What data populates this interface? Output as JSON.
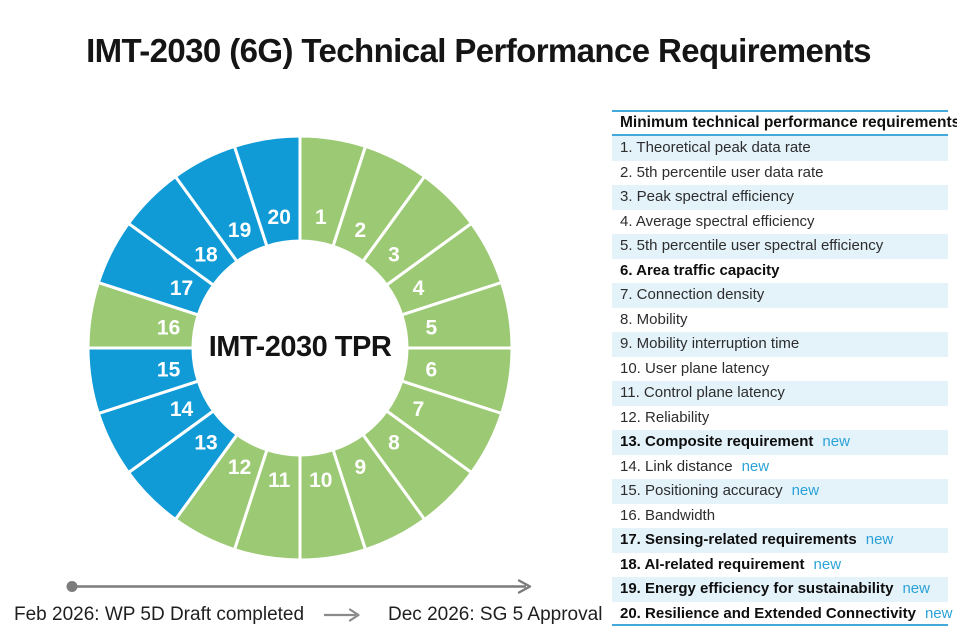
{
  "page": {
    "title": "IMT-2030 (6G) Technical Performance Requirements"
  },
  "chart_data": {
    "type": "donut",
    "title": "IMT-2030 (6G) Technical Performance Requirements",
    "center_label": "IMT-2030 TPR",
    "segment_count": 20,
    "direction": "clockwise",
    "start_position": "top",
    "equal_segments": true,
    "status_colors": {
      "existing": "#9cc973",
      "new": "#109bd7"
    },
    "segments": [
      {
        "n": "1",
        "status": "existing"
      },
      {
        "n": "2",
        "status": "existing"
      },
      {
        "n": "3",
        "status": "existing"
      },
      {
        "n": "4",
        "status": "existing"
      },
      {
        "n": "5",
        "status": "existing"
      },
      {
        "n": "6",
        "status": "existing"
      },
      {
        "n": "7",
        "status": "existing"
      },
      {
        "n": "8",
        "status": "existing"
      },
      {
        "n": "9",
        "status": "existing"
      },
      {
        "n": "10",
        "status": "existing"
      },
      {
        "n": "11",
        "status": "existing"
      },
      {
        "n": "12",
        "status": "existing"
      },
      {
        "n": "13",
        "status": "new"
      },
      {
        "n": "14",
        "status": "new"
      },
      {
        "n": "15",
        "status": "new"
      },
      {
        "n": "16",
        "status": "existing"
      },
      {
        "n": "17",
        "status": "new"
      },
      {
        "n": "18",
        "status": "new"
      },
      {
        "n": "19",
        "status": "new"
      },
      {
        "n": "20",
        "status": "new"
      }
    ]
  },
  "table": {
    "header": "Minimum technical performance requirements",
    "new_tag_label": "new",
    "rows": [
      {
        "label": "1. Theoretical peak data rate",
        "bold": false,
        "new": false
      },
      {
        "label": "2. 5th percentile user data rate",
        "bold": false,
        "new": false
      },
      {
        "label": "3. Peak spectral efficiency",
        "bold": false,
        "new": false
      },
      {
        "label": "4. Average spectral efficiency",
        "bold": false,
        "new": false
      },
      {
        "label": "5. 5th percentile user spectral efficiency",
        "bold": false,
        "new": false
      },
      {
        "label": "6. Area traffic capacity",
        "bold": true,
        "new": false
      },
      {
        "label": "7. Connection density",
        "bold": false,
        "new": false
      },
      {
        "label": "8. Mobility",
        "bold": false,
        "new": false
      },
      {
        "label": "9. Mobility interruption time",
        "bold": false,
        "new": false
      },
      {
        "label": "10. User plane latency",
        "bold": false,
        "new": false
      },
      {
        "label": "11. Control plane latency",
        "bold": false,
        "new": false
      },
      {
        "label": "12. Reliability",
        "bold": false,
        "new": false
      },
      {
        "label": "13. Composite requirement",
        "bold": true,
        "new": true
      },
      {
        "label": "14. Link distance",
        "bold": false,
        "new": true
      },
      {
        "label": "15. Positioning accuracy",
        "bold": false,
        "new": true
      },
      {
        "label": "16. Bandwidth",
        "bold": false,
        "new": false
      },
      {
        "label": "17. Sensing-related requirements",
        "bold": true,
        "new": true
      },
      {
        "label": "18. AI-related requirement",
        "bold": true,
        "new": true
      },
      {
        "label": "19. Energy efficiency for sustainability",
        "bold": true,
        "new": true
      },
      {
        "label": "20. Resilience and Extended Connectivity",
        "bold": true,
        "new": true
      }
    ]
  },
  "timeline": {
    "start_label": "Feb 2026: WP 5D Draft completed",
    "end_label": "Dec 2026: SG 5 Approval"
  },
  "colors": {
    "segment_existing": "#9cc973",
    "segment_new": "#109bd7",
    "table_line": "#41aadb",
    "new_text": "#2aa2d8",
    "row_alt_bg": "#e4f2fa",
    "timeline_gray": "#7c7c7c"
  }
}
